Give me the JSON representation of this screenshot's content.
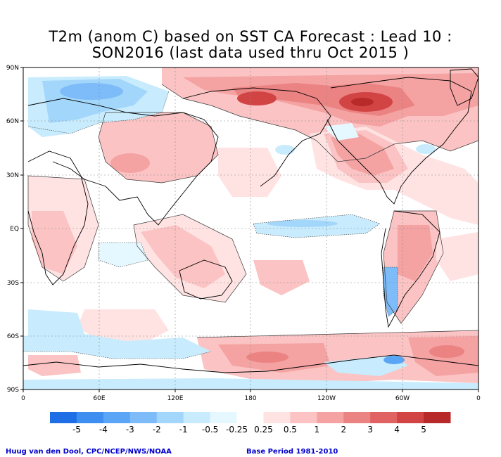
{
  "title": {
    "line1": "T2m (anom C) based on SST CA Forecast : Lead 10 :",
    "line2": "SON2016 (last data used thru Oct 2015 )"
  },
  "axes": {
    "y_ticks": [
      "90N",
      "60N",
      "30N",
      "EQ",
      "30S",
      "60S",
      "90S"
    ],
    "x_ticks": [
      "0",
      "60E",
      "120E",
      "180",
      "120W",
      "60W",
      "0"
    ]
  },
  "colorbar": {
    "labels": [
      "-5",
      "-4",
      "-3",
      "-2",
      "-1",
      "-0.5",
      "-0.25",
      "0.25",
      "0.5",
      "1",
      "2",
      "3",
      "4",
      "5"
    ],
    "colors": [
      "#1e6fe6",
      "#3d8ef0",
      "#5aa5f5",
      "#7dbcf8",
      "#a3d6fb",
      "#c8ecfd",
      "#e6f8ff",
      "#ffffff",
      "#ffe3e3",
      "#fbc3c3",
      "#f4a2a2",
      "#ec8383",
      "#e06262",
      "#d24444",
      "#b82a2a"
    ]
  },
  "footer": {
    "credit": "Huug van den Dool, CPC/NCEP/NWS/NOAA",
    "base_period": "Base Period 1981-2010"
  }
}
